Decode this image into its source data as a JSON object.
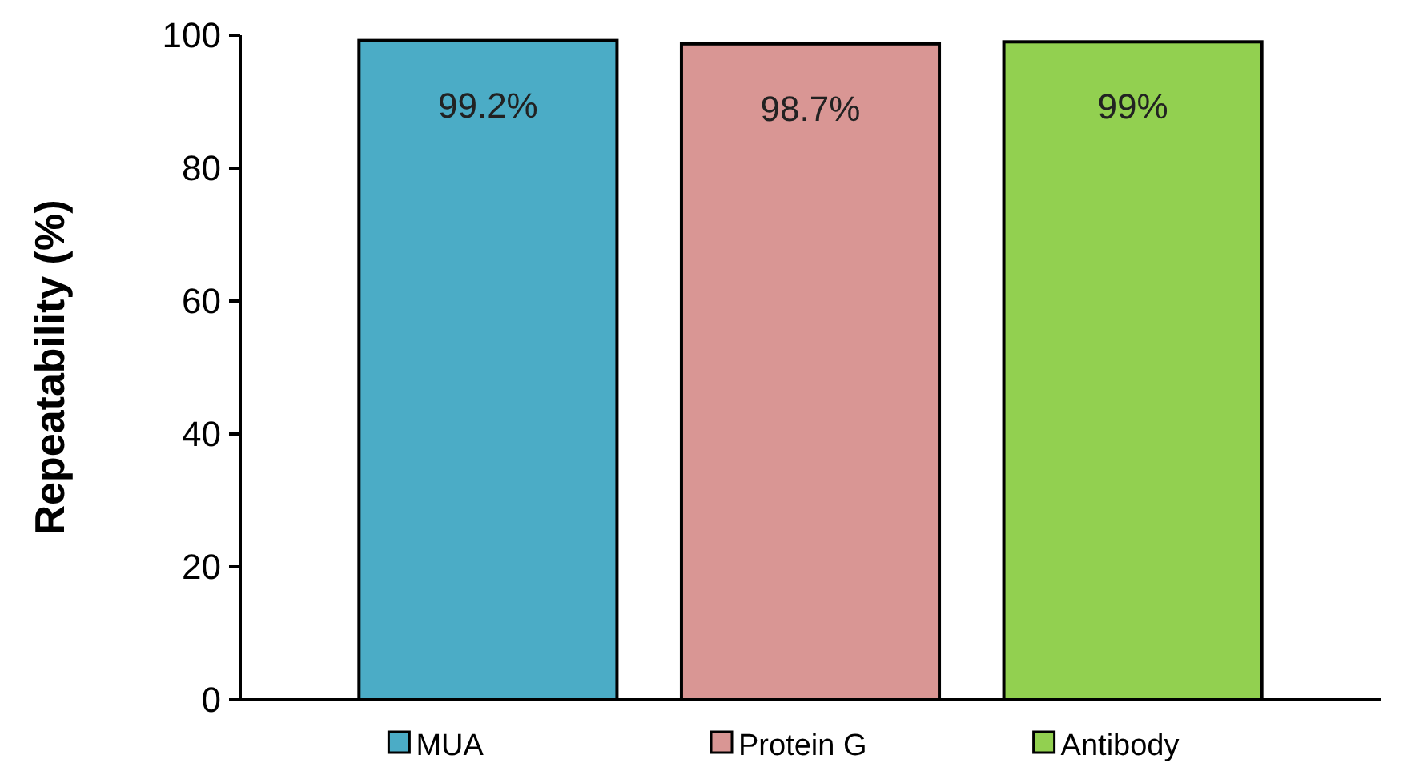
{
  "chart_data": {
    "type": "bar",
    "ylabel": "Repeatability (%)",
    "categories": [
      null
    ],
    "series": [
      {
        "name": "MUA",
        "color": "#4bacc6",
        "values": [
          99.2
        ],
        "value_labels": [
          "99.2%"
        ]
      },
      {
        "name": "Protein G",
        "color": "#d99694",
        "values": [
          98.7
        ],
        "value_labels": [
          "98.7%"
        ]
      },
      {
        "name": "Antibody",
        "color": "#92d050",
        "values": [
          99
        ],
        "value_labels": [
          "99%"
        ]
      }
    ],
    "ylim": [
      0,
      100
    ],
    "yticks": [
      0,
      20,
      40,
      60,
      80,
      100
    ],
    "grid": false,
    "legend": "bottom"
  }
}
